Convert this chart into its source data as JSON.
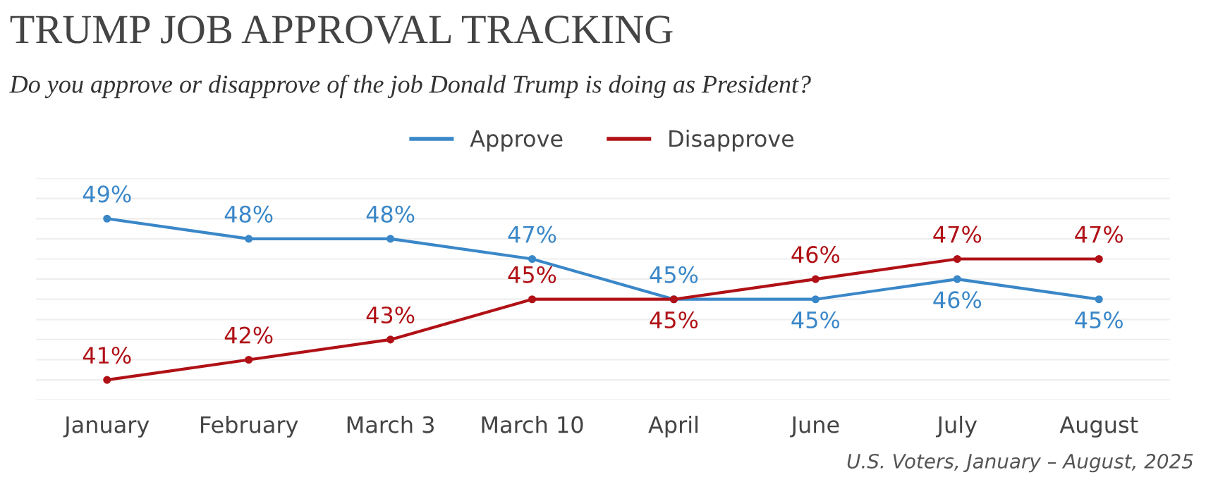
{
  "chart_data": {
    "type": "line",
    "title": "TRUMP JOB APPROVAL TRACKING",
    "subtitle": "Do you approve or disapprove of the job Donald Trump is doing as President?",
    "categories": [
      "January",
      "February",
      "March 3",
      "March 10",
      "April",
      "June",
      "July",
      "August"
    ],
    "series": [
      {
        "name": "Approve",
        "color": "#3a87c8",
        "values": [
          49,
          48,
          48,
          47,
          45,
          45,
          46,
          45
        ],
        "value_labels": [
          "49%",
          "48%",
          "48%",
          "47%",
          "45%",
          "45%",
          "46%",
          "45%"
        ]
      },
      {
        "name": "Disapprove",
        "color": "#b01116",
        "values": [
          41,
          42,
          43,
          45,
          45,
          46,
          47,
          47
        ],
        "value_labels": [
          "41%",
          "42%",
          "43%",
          "45%",
          "45%",
          "46%",
          "47%",
          "47%"
        ]
      }
    ],
    "grid": "y",
    "legend": "top",
    "marker": "circle",
    "line_style": "solid",
    "tick_labels": "x",
    "annotations": [
      "U.S. Voters, January – August, 2025"
    ]
  }
}
